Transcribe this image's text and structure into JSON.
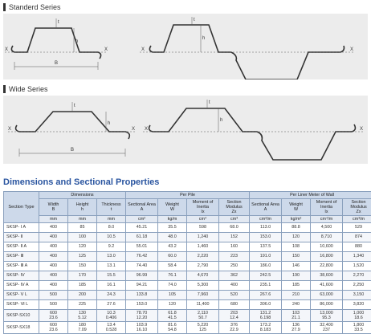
{
  "standard_series": {
    "heading": "Standerd Series",
    "labels": {
      "t": "t",
      "h": "h",
      "b": "B",
      "x": "X"
    }
  },
  "wide_series": {
    "heading": "Wide Series",
    "labels": {
      "t": "t",
      "h": "h",
      "b": "B",
      "x": "X"
    }
  },
  "section_title": "Dimensions and Sectional Properties",
  "table": {
    "group_headers": {
      "section_type": "Section Type",
      "dimensions": "Dimensions",
      "per_pile": "Per Pile",
      "per_wall": "Per Liner Meter of Wall"
    },
    "columns": [
      {
        "name": "Width",
        "symbol": "B",
        "unit": "mm"
      },
      {
        "name": "Height",
        "symbol": "h",
        "unit": "mm"
      },
      {
        "name": "Thickness",
        "symbol": "t",
        "unit": "mm"
      },
      {
        "name": "Sectional Area",
        "symbol": "A",
        "unit": "cm²"
      },
      {
        "name": "Weight",
        "symbol": "W",
        "unit": "kg/m"
      },
      {
        "name": "Moment of Inertia",
        "symbol": "Ix",
        "unit": "cm⁴"
      },
      {
        "name": "Section Modulus",
        "symbol": "Zx",
        "unit": "cm³"
      },
      {
        "name": "Sectional Area",
        "symbol": "A",
        "unit": "cm²/m"
      },
      {
        "name": "Weight",
        "symbol": "W",
        "unit": "kg/m²"
      },
      {
        "name": "Moment of Inertia",
        "symbol": "Ix",
        "unit": "cm⁴/m"
      },
      {
        "name": "Section Modulus",
        "symbol": "Zx",
        "unit": "cm³/m"
      }
    ],
    "rows": [
      {
        "type": "SKSP- Ⅰ A",
        "v": [
          "400",
          "85",
          "8.0",
          "45.21",
          "35.5",
          "598",
          "68.0",
          "113.0",
          "88.8",
          "4,500",
          "529"
        ]
      },
      {
        "type": "SKSP- Ⅱ",
        "v": [
          "400",
          "100",
          "10.5",
          "61.18",
          "48.0",
          "1,240",
          "152",
          "153.0",
          "120",
          "8,710",
          "874"
        ]
      },
      {
        "type": "SKSP- Ⅱ A",
        "v": [
          "400",
          "120",
          "9.2",
          "55.01",
          "43.2",
          "1,460",
          "160",
          "137.5",
          "108",
          "10,600",
          "880"
        ]
      },
      {
        "type": "SKSP- Ⅲ",
        "v": [
          "400",
          "125",
          "13.0",
          "76.42",
          "60.0",
          "2,220",
          "223",
          "191.0",
          "150",
          "16,800",
          "1,340"
        ]
      },
      {
        "type": "SKSP- Ⅲ A",
        "v": [
          "400",
          "150",
          "13.1",
          "74.40",
          "58.4",
          "2,790",
          "250",
          "186.0",
          "146",
          "22,800",
          "1,520"
        ]
      },
      {
        "type": "SKSP- Ⅳ",
        "v": [
          "400",
          "170",
          "15.5",
          "96.99",
          "76.1",
          "4,670",
          "362",
          "242.5",
          "190",
          "38,600",
          "2,270"
        ]
      },
      {
        "type": "SKSP- Ⅳ A",
        "v": [
          "400",
          "185",
          "16.1",
          "94.21",
          "74.0",
          "5,300",
          "400",
          "235.1",
          "185",
          "41,600",
          "2,250"
        ]
      },
      {
        "type": "SKSP- Ⅴ L",
        "v": [
          "500",
          "200",
          "24.3",
          "133.8",
          "105",
          "7,960",
          "520",
          "267.6",
          "210",
          "63,000",
          "3,150"
        ]
      },
      {
        "type": "SKSP- Ⅵ L",
        "v": [
          "500",
          "225",
          "27.6",
          "153.0",
          "120",
          "11,400",
          "680",
          "306.0",
          "240",
          "86,000",
          "3,820"
        ]
      },
      {
        "type": "SKSP-SX10",
        "tall": true,
        "v": [
          "600\n23.6",
          "130\n5.12",
          "10.3\n0.406",
          "78.70\n12.20",
          "61.8\n41.5",
          "2,110\n50.7",
          "203\n12.4",
          "131.2\n6.198",
          "103\n21.1",
          "13,000\n95.3",
          "1,000\n18.6"
        ]
      },
      {
        "type": "SKSP-SX18",
        "tall": true,
        "v": [
          "600\n23.6",
          "180\n7.09",
          "13.4\n0.528",
          "103.9\n16.10",
          "81.6\n54.8",
          "5,220\n125",
          "376\n22.9",
          "173.2\n8.183",
          "136\n27.9",
          "32,400\n237",
          "1,800\n33.5"
        ]
      }
    ]
  }
}
